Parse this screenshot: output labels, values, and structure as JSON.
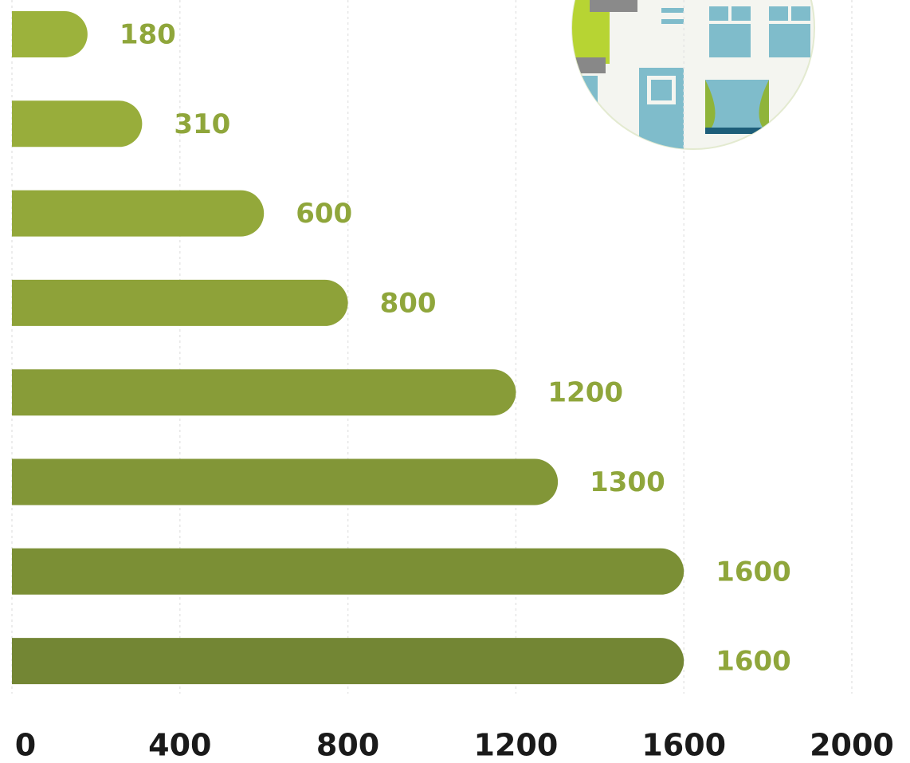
{
  "chart_data": {
    "type": "bar",
    "orientation": "horizontal",
    "values": [
      180,
      310,
      600,
      800,
      1200,
      1300,
      1600,
      1600
    ],
    "colors": [
      "#9cb23c",
      "#98ad3b",
      "#93a83a",
      "#8ea239",
      "#889c38",
      "#829637",
      "#7b8f35",
      "#738634"
    ],
    "label_color": "#8fa63b",
    "xlim": [
      0,
      2000
    ],
    "xticks": [
      0,
      400,
      800,
      1200,
      1600,
      2000
    ],
    "grid": true
  }
}
